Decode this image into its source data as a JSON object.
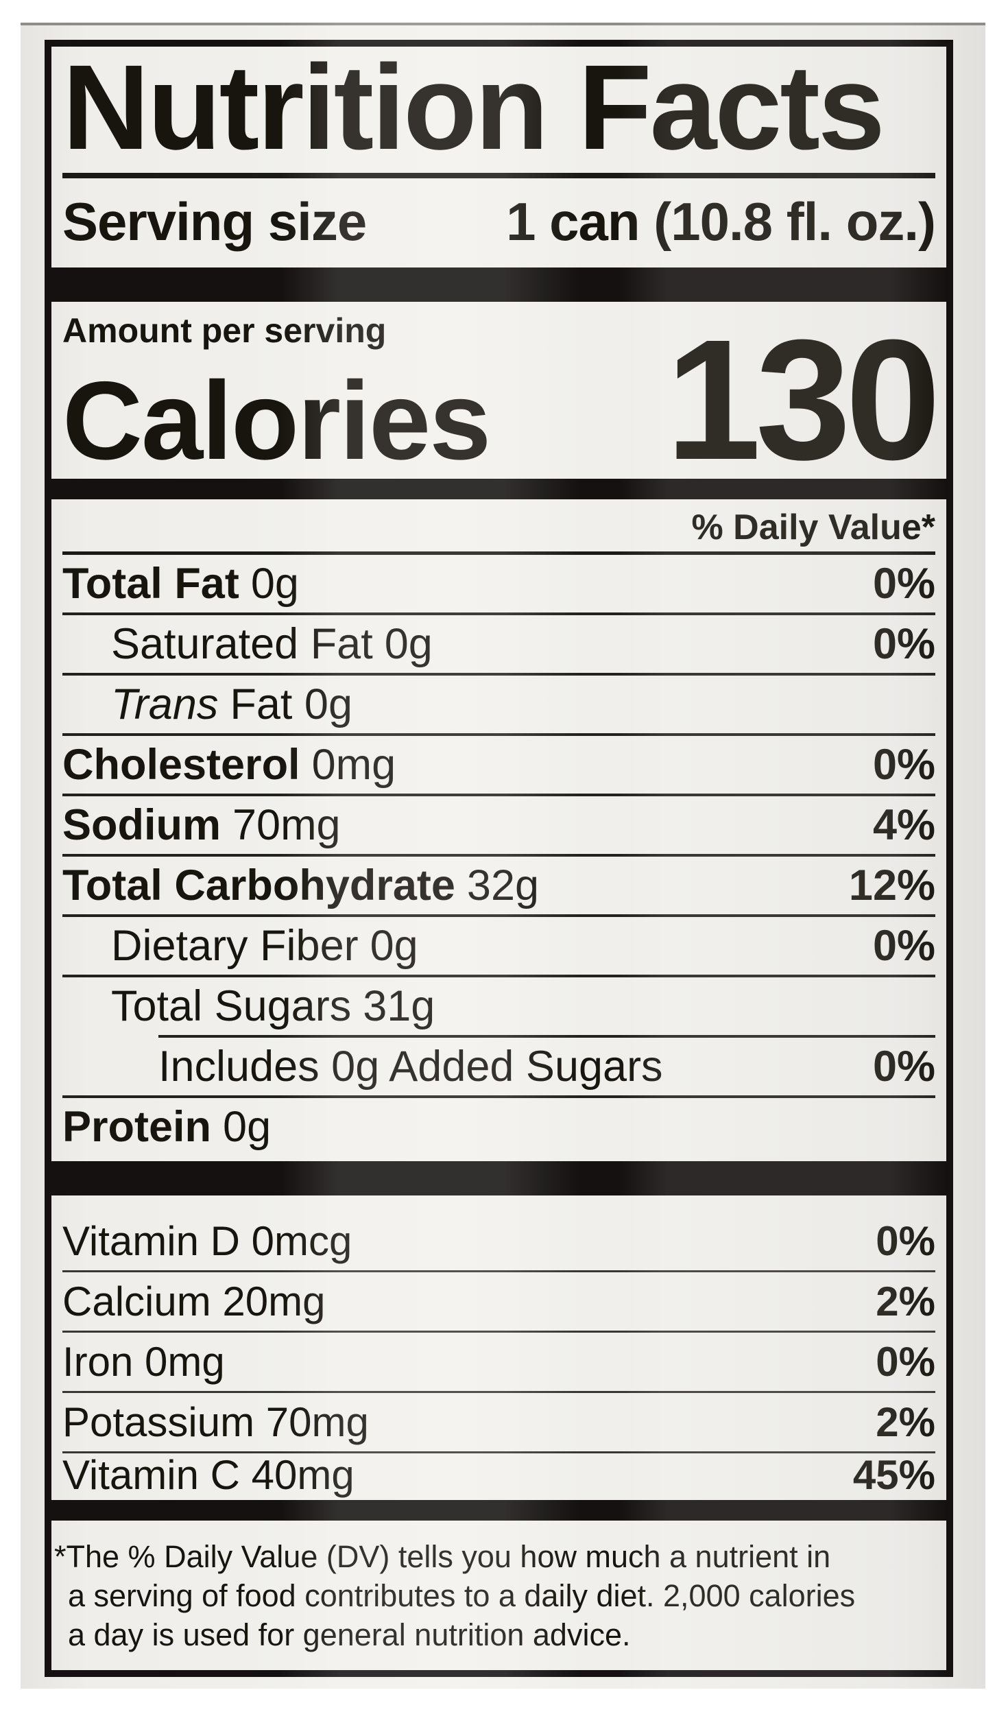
{
  "colors": {
    "page_bg": "#ffffff",
    "photo_bg": "#f0efeb",
    "ink": "#18150f"
  },
  "header": {
    "title": "Nutrition Facts"
  },
  "serving": {
    "label": "Serving size",
    "value": "1 can (10.8 fl. oz.)"
  },
  "calories": {
    "section_label": "Amount per serving",
    "label": "Calories",
    "value": "130"
  },
  "daily_value_header": "% Daily Value*",
  "nutrients": [
    {
      "name": "Total Fat",
      "amount": "0g",
      "dv": "0%"
    },
    {
      "name": "Saturated Fat",
      "amount": "0g",
      "dv": "0%"
    },
    {
      "name": "Trans",
      "amount": "Fat 0g",
      "dv": ""
    },
    {
      "name": "Cholesterol",
      "amount": "0mg",
      "dv": "0%"
    },
    {
      "name": "Sodium",
      "amount": "70mg",
      "dv": "4%"
    },
    {
      "name": "Total Carbohydrate",
      "amount": "32g",
      "dv": "12%"
    },
    {
      "name": "Dietary Fiber",
      "amount": "0g",
      "dv": "0%"
    },
    {
      "name": "Total Sugars",
      "amount": "31g",
      "dv": ""
    },
    {
      "name": "Includes 0g Added Sugars",
      "amount": "",
      "dv": "0%"
    },
    {
      "name": "Protein",
      "amount": "0g",
      "dv": ""
    }
  ],
  "vitamins": [
    {
      "name": "Vitamin D 0mcg",
      "dv": "0%"
    },
    {
      "name": "Calcium 20mg",
      "dv": "2%"
    },
    {
      "name": "Iron 0mg",
      "dv": "0%"
    },
    {
      "name": "Potassium 70mg",
      "dv": "2%"
    },
    {
      "name": "Vitamin C 40mg",
      "dv": "45%"
    }
  ],
  "footnote": {
    "marker": "*",
    "lines": [
      "The % Daily Value (DV) tells you how much a nutrient in",
      "a serving of food contributes to a daily diet. 2,000 calories",
      "a day is used for general nutrition advice."
    ]
  }
}
